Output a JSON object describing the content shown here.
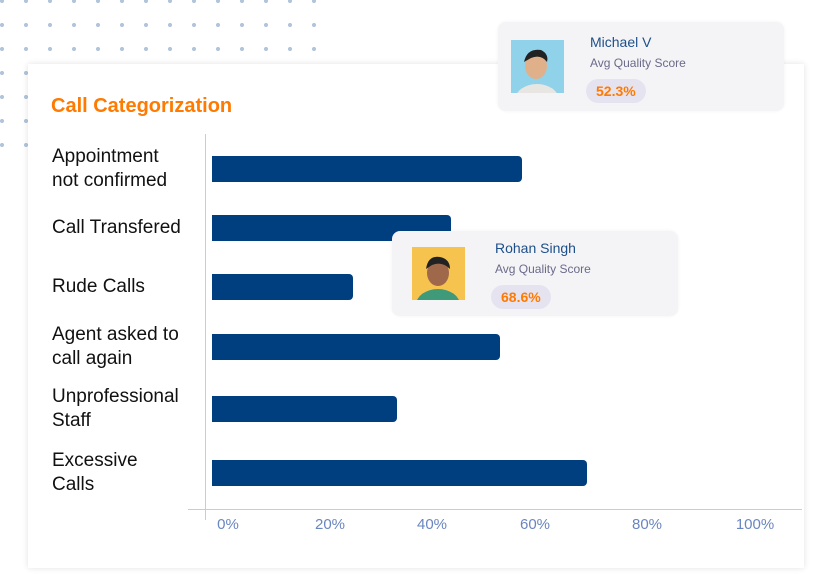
{
  "chart_data": {
    "type": "bar",
    "orientation": "horizontal",
    "title": "Call Categorization",
    "categories": [
      "Appointment\nnot confirmed",
      "Call Transfered",
      "Rude Calls",
      "Agent asked to\ncall again",
      "Unprofessional\nStaff",
      "Excessive\nCalls"
    ],
    "values": [
      57,
      44,
      26,
      53,
      34,
      69
    ],
    "xlim": [
      0,
      100
    ],
    "xticks": [
      "0%",
      "20%",
      "40%",
      "60%",
      "80%",
      "100%"
    ],
    "bar_color": "#003f7f"
  },
  "popups": [
    {
      "name": "Michael V",
      "label": "Avg Quality Score",
      "score": "52.3%"
    },
    {
      "name": "Rohan Singh",
      "label": "Avg Quality Score",
      "score": "68.6%"
    }
  ]
}
